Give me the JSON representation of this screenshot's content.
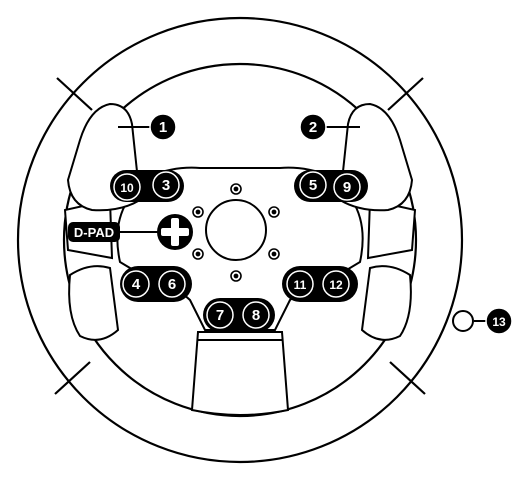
{
  "diagram": {
    "colors": {
      "outline": "#000000",
      "fill": "#ffffff",
      "badge": "#000000",
      "badge_text": "#ffffff"
    },
    "dpad_label": "D-PAD",
    "labels": [
      {
        "id": "paddle-left",
        "text": "1"
      },
      {
        "id": "paddle-right",
        "text": "2"
      },
      {
        "id": "button-3",
        "text": "3"
      },
      {
        "id": "button-10",
        "text": "10"
      },
      {
        "id": "button-5",
        "text": "5"
      },
      {
        "id": "button-9",
        "text": "9"
      },
      {
        "id": "button-4",
        "text": "4"
      },
      {
        "id": "button-6",
        "text": "6"
      },
      {
        "id": "button-11",
        "text": "11"
      },
      {
        "id": "button-12",
        "text": "12"
      },
      {
        "id": "button-7",
        "text": "7"
      },
      {
        "id": "button-8",
        "text": "8"
      },
      {
        "id": "mode-button",
        "text": "13"
      }
    ]
  }
}
